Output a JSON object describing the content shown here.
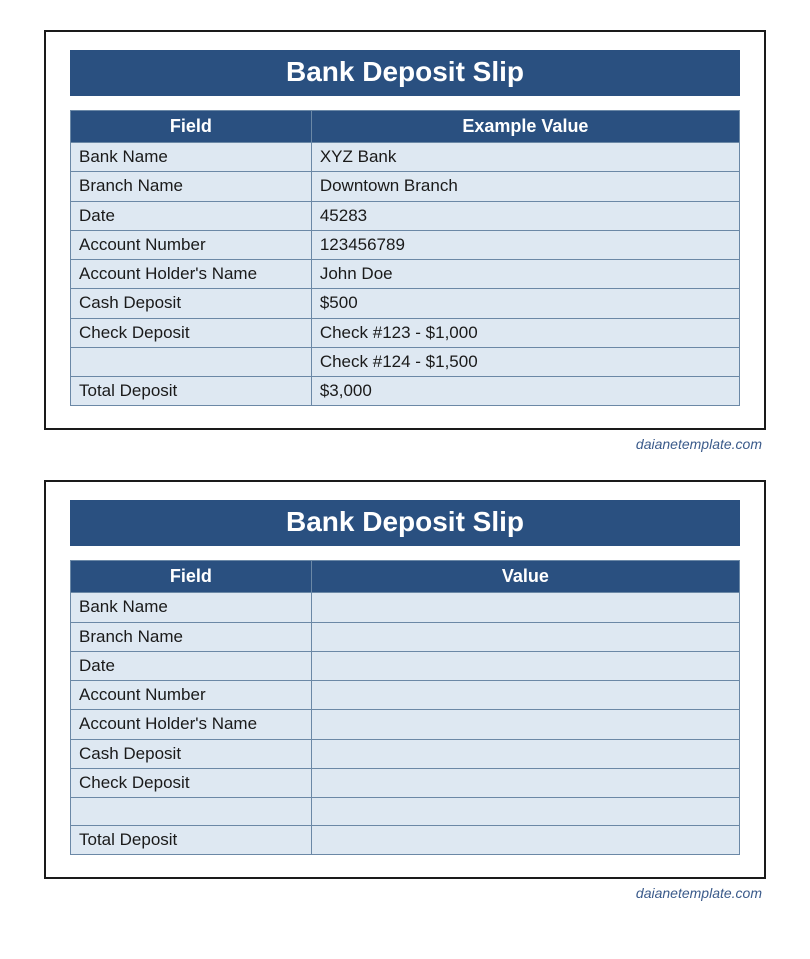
{
  "colors": {
    "header_bg": "#2a5080",
    "header_text": "#ffffff",
    "cell_bg": "#dee8f2",
    "cell_border": "#6b88a6",
    "slip_border": "#1a1a1a",
    "attribution_text": "#3a5a8a"
  },
  "typography": {
    "title_fontsize": 28,
    "header_fontsize": 18,
    "cell_fontsize": 17,
    "attribution_fontsize": 14,
    "font_family": "Segoe UI"
  },
  "layout": {
    "field_col_width_pct": 36,
    "value_col_width_pct": 64
  },
  "attribution": "daianetemplate.com",
  "slip1": {
    "title": "Bank Deposit Slip",
    "columns": {
      "field": "Field",
      "value": "Example Value"
    },
    "rows": [
      {
        "field": "Bank Name",
        "value": "XYZ Bank"
      },
      {
        "field": "Branch Name",
        "value": "Downtown Branch"
      },
      {
        "field": "Date",
        "value": "45283"
      },
      {
        "field": "Account Number",
        "value": "123456789"
      },
      {
        "field": "Account Holder's Name",
        "value": "John Doe"
      },
      {
        "field": "Cash Deposit",
        "value": "$500"
      },
      {
        "field": "Check Deposit",
        "value": "Check #123 - $1,000"
      },
      {
        "field": "",
        "value": "Check #124 - $1,500"
      },
      {
        "field": "Total Deposit",
        "value": "$3,000"
      }
    ]
  },
  "slip2": {
    "title": "Bank Deposit Slip",
    "columns": {
      "field": "Field",
      "value": "Value"
    },
    "rows": [
      {
        "field": "Bank Name",
        "value": ""
      },
      {
        "field": "Branch Name",
        "value": ""
      },
      {
        "field": "Date",
        "value": ""
      },
      {
        "field": "Account Number",
        "value": ""
      },
      {
        "field": "Account Holder's Name",
        "value": ""
      },
      {
        "field": "Cash Deposit",
        "value": ""
      },
      {
        "field": "Check Deposit",
        "value": ""
      },
      {
        "field": "",
        "value": ""
      },
      {
        "field": "Total Deposit",
        "value": ""
      }
    ]
  }
}
